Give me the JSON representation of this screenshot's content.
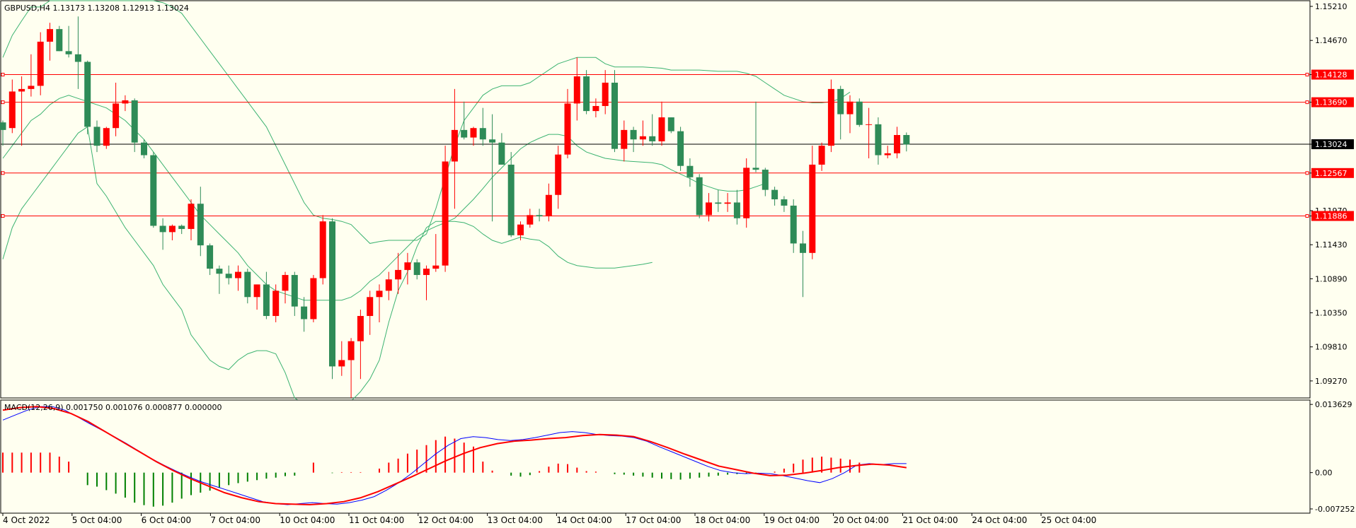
{
  "main": {
    "title": "GBPUSD,H4  1.13173 1.13208 1.12913 1.13024",
    "ylim": [
      1.09,
      1.153
    ],
    "y_ticks": [
      "1.15210",
      "1.14670",
      "1.14128",
      "1.13690",
      "1.13024",
      "1.12567",
      "1.11970",
      "1.11886",
      "1.11430",
      "1.10890",
      "1.10350",
      "1.09810",
      "1.09270"
    ],
    "h_lines": [
      {
        "value": "1.14128",
        "color": "#ff0000"
      },
      {
        "value": "1.13690",
        "color": "#ff0000"
      },
      {
        "value": "1.12567",
        "color": "#ff0000"
      },
      {
        "value": "1.11886",
        "color": "#ff0000"
      }
    ],
    "current_price": {
      "value": "1.13024",
      "color": "#000000"
    }
  },
  "macd": {
    "title": "MACD(12,26,9) 0.001750 0.001076 0.000877 0.000000",
    "ylim": [
      -0.0081,
      0.0145
    ],
    "y_ticks": [
      "0.013629",
      "0.00",
      "-0.007252"
    ]
  },
  "x_ticks": [
    "4 Oct 2022",
    "5 Oct 04:00",
    "6 Oct 04:00",
    "7 Oct 04:00",
    "10 Oct 04:00",
    "11 Oct 04:00",
    "12 Oct 04:00",
    "13 Oct 04:00",
    "14 Oct 04:00",
    "17 Oct 04:00",
    "18 Oct 04:00",
    "19 Oct 04:00",
    "20 Oct 04:00",
    "21 Oct 04:00",
    "24 Oct 04:00",
    "25 Oct 04:00"
  ],
  "colors": {
    "up": "#ff0000",
    "down": "#2e8b57",
    "band": "#3cb371",
    "macd_line": "#0000ff",
    "signal_line": "#ff0000",
    "hist_pos": "#ff0000",
    "hist_neg": "#008000",
    "background": "#fffff0",
    "border": "#000000"
  },
  "chart_data": [
    {
      "type": "candlestick",
      "title": "GBPUSD,H4",
      "ohlc": [
        [
          1.1337,
          1.134,
          1.13,
          1.1325
        ],
        [
          1.1328,
          1.1405,
          1.132,
          1.1386
        ],
        [
          1.1386,
          1.141,
          1.13,
          1.139
        ],
        [
          1.139,
          1.1445,
          1.1378,
          1.1395
        ],
        [
          1.1395,
          1.148,
          1.138,
          1.1465
        ],
        [
          1.1465,
          1.1495,
          1.1435,
          1.1485
        ],
        [
          1.1485,
          1.149,
          1.145,
          1.145
        ],
        [
          1.145,
          1.149,
          1.144,
          1.1445
        ],
        [
          1.1445,
          1.1505,
          1.139,
          1.1433
        ],
        [
          1.1433,
          1.1435,
          1.1318,
          1.133
        ],
        [
          1.133,
          1.134,
          1.129,
          1.13
        ],
        [
          1.13,
          1.133,
          1.1295,
          1.1328
        ],
        [
          1.1328,
          1.14,
          1.1315,
          1.1367
        ],
        [
          1.1367,
          1.138,
          1.1355,
          1.1372
        ],
        [
          1.1372,
          1.1375,
          1.129,
          1.1305
        ],
        [
          1.1305,
          1.131,
          1.128,
          1.1285
        ],
        [
          1.1285,
          1.129,
          1.117,
          1.1173
        ],
        [
          1.1173,
          1.1185,
          1.1135,
          1.1163
        ],
        [
          1.1163,
          1.1175,
          1.115,
          1.1173
        ],
        [
          1.1173,
          1.1175,
          1.116,
          1.1168
        ],
        [
          1.1168,
          1.1215,
          1.115,
          1.1208
        ],
        [
          1.1208,
          1.1235,
          1.1125,
          1.1142
        ],
        [
          1.1142,
          1.1145,
          1.1095,
          1.1105
        ],
        [
          1.1105,
          1.111,
          1.1065,
          1.1097
        ],
        [
          1.1097,
          1.111,
          1.108,
          1.109
        ],
        [
          1.109,
          1.111,
          1.107,
          1.11
        ],
        [
          1.11,
          1.1105,
          1.105,
          1.106
        ],
        [
          1.106,
          1.108,
          1.104,
          1.108
        ],
        [
          1.108,
          1.11,
          1.1025,
          1.103
        ],
        [
          1.103,
          1.108,
          1.102,
          1.107
        ],
        [
          1.107,
          1.11,
          1.105,
          1.1095
        ],
        [
          1.1095,
          1.11,
          1.103,
          1.1045
        ],
        [
          1.1045,
          1.106,
          1.1005,
          1.1025
        ],
        [
          1.1025,
          1.1095,
          1.102,
          1.109
        ],
        [
          1.109,
          1.119,
          1.108,
          1.118
        ],
        [
          1.118,
          1.1185,
          1.093,
          1.095
        ],
        [
          1.095,
          1.099,
          1.0935,
          1.096
        ],
        [
          1.096,
          1.0995,
          1.09,
          1.099
        ],
        [
          1.099,
          1.104,
          1.093,
          1.103
        ],
        [
          1.103,
          1.107,
          1.1,
          1.106
        ],
        [
          1.106,
          1.108,
          1.102,
          1.107
        ],
        [
          1.107,
          1.11,
          1.1055,
          1.1088
        ],
        [
          1.1088,
          1.113,
          1.1065,
          1.1103
        ],
        [
          1.1103,
          1.113,
          1.108,
          1.1115
        ],
        [
          1.1115,
          1.112,
          1.1088,
          1.1095
        ],
        [
          1.1095,
          1.111,
          1.1055,
          1.1105
        ],
        [
          1.1105,
          1.116,
          1.11,
          1.111
        ],
        [
          1.111,
          1.13,
          1.11,
          1.1275
        ],
        [
          1.1275,
          1.139,
          1.12,
          1.1325
        ],
        [
          1.1325,
          1.137,
          1.131,
          1.1313
        ],
        [
          1.1313,
          1.133,
          1.13,
          1.1328
        ],
        [
          1.1328,
          1.136,
          1.13,
          1.131
        ],
        [
          1.131,
          1.135,
          1.118,
          1.1305
        ],
        [
          1.1305,
          1.132,
          1.127,
          1.127
        ],
        [
          1.127,
          1.129,
          1.1155,
          1.1158
        ],
        [
          1.1158,
          1.118,
          1.115,
          1.1175
        ],
        [
          1.1175,
          1.12,
          1.117,
          1.119
        ],
        [
          1.119,
          1.12,
          1.118,
          1.1188
        ],
        [
          1.1188,
          1.124,
          1.118,
          1.1222
        ],
        [
          1.1222,
          1.13,
          1.12,
          1.1286
        ],
        [
          1.1286,
          1.139,
          1.128,
          1.1367
        ],
        [
          1.1367,
          1.144,
          1.134,
          1.141
        ],
        [
          1.141,
          1.142,
          1.135,
          1.1355
        ],
        [
          1.1355,
          1.1375,
          1.1345,
          1.1363
        ],
        [
          1.1363,
          1.142,
          1.135,
          1.14
        ],
        [
          1.14,
          1.142,
          1.129,
          1.1295
        ],
        [
          1.1295,
          1.134,
          1.1275,
          1.1325
        ],
        [
          1.1325,
          1.133,
          1.129,
          1.131
        ],
        [
          1.131,
          1.134,
          1.13,
          1.1315
        ],
        [
          1.1315,
          1.135,
          1.13,
          1.1307
        ],
        [
          1.1307,
          1.137,
          1.13,
          1.1345
        ],
        [
          1.1345,
          1.1345,
          1.132,
          1.1323
        ],
        [
          1.1323,
          1.133,
          1.126,
          1.1268
        ],
        [
          1.1268,
          1.128,
          1.1235,
          1.125
        ],
        [
          1.125,
          1.1255,
          1.1185,
          1.119
        ],
        [
          1.119,
          1.1225,
          1.118,
          1.121
        ],
        [
          1.121,
          1.123,
          1.1195,
          1.1208
        ],
        [
          1.1208,
          1.1225,
          1.1195,
          1.121
        ],
        [
          1.121,
          1.123,
          1.1175,
          1.1185
        ],
        [
          1.1185,
          1.128,
          1.117,
          1.1265
        ],
        [
          1.1265,
          1.137,
          1.1258,
          1.1262
        ],
        [
          1.1262,
          1.1265,
          1.122,
          1.123
        ],
        [
          1.123,
          1.1235,
          1.1205,
          1.1215
        ],
        [
          1.1215,
          1.122,
          1.1195,
          1.1205
        ],
        [
          1.1205,
          1.1215,
          1.113,
          1.1145
        ],
        [
          1.1145,
          1.1165,
          1.106,
          1.113
        ],
        [
          1.113,
          1.13,
          1.112,
          1.127
        ],
        [
          1.127,
          1.1305,
          1.126,
          1.13
        ],
        [
          1.13,
          1.1405,
          1.129,
          1.139
        ],
        [
          1.139,
          1.1395,
          1.131,
          1.135
        ],
        [
          1.135,
          1.138,
          1.132,
          1.137
        ],
        [
          1.137,
          1.1375,
          1.133,
          1.1333
        ],
        [
          1.1333,
          1.136,
          1.128,
          1.1334
        ],
        [
          1.1334,
          1.1345,
          1.127,
          1.1285
        ],
        [
          1.1285,
          1.13,
          1.128,
          1.1288
        ],
        [
          1.1288,
          1.133,
          1.128,
          1.1317
        ],
        [
          1.1317,
          1.1321,
          1.1291,
          1.1302
        ]
      ],
      "bollinger_upper": [
        1.144,
        1.1475,
        1.1498,
        1.152,
        1.152,
        1.153,
        1.153,
        1.153,
        1.153,
        1.153,
        1.153,
        1.153,
        1.153,
        1.153,
        1.153,
        1.153,
        1.153,
        1.1527,
        1.152,
        1.151,
        1.149,
        1.147,
        1.145,
        1.143,
        1.141,
        1.139,
        1.137,
        1.135,
        1.133,
        1.13,
        1.127,
        1.124,
        1.121,
        1.119,
        1.1185,
        1.1183,
        1.118,
        1.1175,
        1.116,
        1.1145,
        1.1148,
        1.115,
        1.115,
        1.115,
        1.115,
        1.116,
        1.12,
        1.125,
        1.13,
        1.134,
        1.136,
        1.138,
        1.139,
        1.1395,
        1.1395,
        1.1395,
        1.14,
        1.141,
        1.142,
        1.143,
        1.1435,
        1.144,
        1.144,
        1.144,
        1.143,
        1.1425,
        1.1425,
        1.1425,
        1.1425,
        1.1424,
        1.1423,
        1.142,
        1.142,
        1.142,
        1.142,
        1.1419,
        1.1418,
        1.1418,
        1.1418,
        1.1415,
        1.141,
        1.14,
        1.139,
        1.138,
        1.1375,
        1.137,
        1.1368,
        1.1368,
        1.137,
        1.1375,
        1.1385
      ],
      "bollinger_middle": [
        1.128,
        1.13,
        1.132,
        1.134,
        1.135,
        1.1365,
        1.1375,
        1.138,
        1.1375,
        1.137,
        1.1365,
        1.136,
        1.135,
        1.134,
        1.1325,
        1.131,
        1.129,
        1.127,
        1.125,
        1.123,
        1.121,
        1.119,
        1.1175,
        1.116,
        1.1145,
        1.113,
        1.111,
        1.1095,
        1.108,
        1.107,
        1.1065,
        1.106,
        1.1055,
        1.1055,
        1.1055,
        1.1055,
        1.1055,
        1.106,
        1.107,
        1.1085,
        1.1095,
        1.111,
        1.1125,
        1.114,
        1.1155,
        1.1165,
        1.1172,
        1.1178,
        1.1185,
        1.12,
        1.1215,
        1.1232,
        1.125,
        1.1265,
        1.128,
        1.1295,
        1.1305,
        1.1312,
        1.1318,
        1.1318,
        1.1315,
        1.13,
        1.129,
        1.1285,
        1.128,
        1.1278,
        1.1276,
        1.1275,
        1.1274,
        1.1273,
        1.127,
        1.1262,
        1.1255,
        1.1248,
        1.124,
        1.1235,
        1.123,
        1.1228,
        1.1228,
        1.123,
        1.1235,
        1.124
      ],
      "bollinger_lower": [
        1.112,
        1.117,
        1.12,
        1.122,
        1.124,
        1.126,
        1.128,
        1.13,
        1.132,
        1.133,
        1.124,
        1.122,
        1.1195,
        1.117,
        1.115,
        1.113,
        1.111,
        1.108,
        1.106,
        1.104,
        1.1,
        1.098,
        1.096,
        1.095,
        1.0945,
        1.096,
        1.097,
        1.0975,
        1.0975,
        1.097,
        1.094,
        1.09,
        1.089,
        1.089,
        1.089,
        1.089,
        1.089,
        1.0895,
        1.091,
        1.093,
        1.096,
        1.102,
        1.107,
        1.11,
        1.114,
        1.117,
        1.118,
        1.118,
        1.118,
        1.1178,
        1.1172,
        1.116,
        1.115,
        1.1145,
        1.115,
        1.1155,
        1.1152,
        1.115,
        1.114,
        1.1125,
        1.1115,
        1.111,
        1.1108,
        1.1106,
        1.1106,
        1.1106,
        1.1108,
        1.111,
        1.1112,
        1.1115
      ]
    },
    {
      "type": "macd",
      "title": "MACD(12,26,9)",
      "macd_line": [
        0.0105,
        0.0115,
        0.0125,
        0.0132,
        0.0132,
        0.0125,
        0.0112,
        0.0098,
        0.0085,
        0.0072,
        0.0058,
        0.0043,
        0.0028,
        0.0015,
        0.0003,
        -0.0008,
        -0.0018,
        -0.0026,
        -0.0034,
        -0.0042,
        -0.005,
        -0.0058,
        -0.0062,
        -0.0064,
        -0.0062,
        -0.006,
        -0.0062,
        -0.0063,
        -0.006,
        -0.0055,
        -0.0048,
        -0.0035,
        -0.002,
        -0.0002,
        0.0018,
        0.0038,
        0.0055,
        0.0068,
        0.0072,
        0.007,
        0.0066,
        0.0064,
        0.0066,
        0.007,
        0.0075,
        0.008,
        0.0082,
        0.008,
        0.0076,
        0.0074,
        0.0073,
        0.007,
        0.0063,
        0.0052,
        0.0042,
        0.0032,
        0.0022,
        0.0012,
        0.0004,
        0.0,
        -0.0002,
        -0.0001,
        -0.0002,
        -0.0006,
        -0.0011,
        -0.0016,
        -0.002,
        -0.0012,
        0.0,
        0.0015,
        0.0018,
        0.0016,
        0.0018,
        0.0018
      ],
      "signal_line": [
        0.0125,
        0.013,
        0.0132,
        0.0128,
        0.0118,
        0.0102,
        0.0082,
        0.0062,
        0.0042,
        0.0022,
        0.0004,
        -0.0012,
        -0.0026,
        -0.004,
        -0.005,
        -0.0058,
        -0.0062,
        -0.0063,
        -0.0064,
        -0.0062,
        -0.0058,
        -0.005,
        -0.0038,
        -0.0023,
        -0.0008,
        0.0008,
        0.0024,
        0.0038,
        0.005,
        0.0058,
        0.0063,
        0.0065,
        0.0068,
        0.007,
        0.0074,
        0.0076,
        0.0075,
        0.0072,
        0.0062,
        0.005,
        0.0037,
        0.0025,
        0.0013,
        0.0006,
        -0.0001,
        -0.0006,
        -0.0005,
        -0.0001,
        0.0004,
        0.001,
        0.0014,
        0.0017,
        0.0015,
        0.001
      ],
      "histogram": [
        0.004,
        0.004,
        0.004,
        0.004,
        0.004,
        0.004,
        0.0032,
        0.0022,
        0.0,
        -0.0025,
        -0.0028,
        -0.0035,
        -0.0042,
        -0.005,
        -0.006,
        -0.0065,
        -0.0068,
        -0.0066,
        -0.006,
        -0.0052,
        -0.0045,
        -0.004,
        -0.0036,
        -0.003,
        -0.0025,
        -0.0021,
        -0.0018,
        -0.0015,
        -0.0012,
        -0.001,
        -0.0007,
        -0.0006,
        0.0,
        0.002,
        0.0,
        -0.0001,
        0.0001,
        0.0001,
        0.0001,
        0.0,
        0.0008,
        0.002,
        0.0028,
        0.0038,
        0.0046,
        0.0055,
        0.0065,
        0.0072,
        0.0068,
        0.006,
        0.0052,
        0.0022,
        0.0004,
        0.0,
        -0.0006,
        -0.0008,
        -0.0005,
        0.0003,
        0.0012,
        0.0018,
        0.0017,
        0.001,
        0.0003,
        0.0002,
        0.0,
        -0.0003,
        -0.0004,
        -0.0006,
        -0.0008,
        -0.001,
        -0.0012,
        -0.0013,
        -0.0014,
        -0.0012,
        -0.001,
        -0.0008,
        -0.0006,
        -0.0004,
        -0.0003,
        -0.0002,
        -0.0001,
        0.0,
        0.0002,
        0.0008,
        0.0018,
        0.0026,
        0.003,
        0.0032,
        0.003,
        0.0028,
        0.0026,
        0.002
      ]
    }
  ]
}
